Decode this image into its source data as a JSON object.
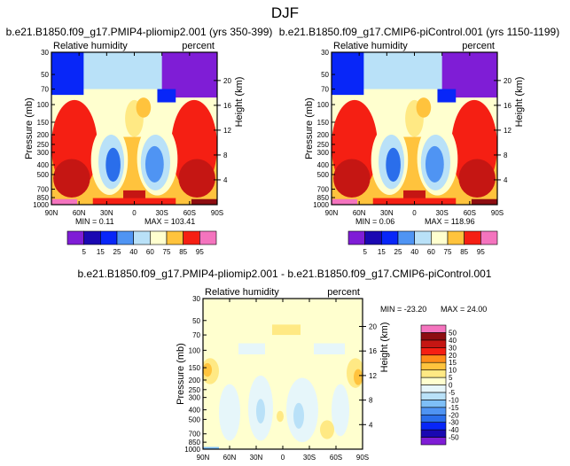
{
  "page_title": "DJF",
  "colors": {
    "c-50": "#7F1DD6",
    "c-40": "#1A08B2",
    "c-30": "#0826F8",
    "c-20": "#2A6EEB",
    "c-15": "#4F94F3",
    "c-10": "#7EBFF7",
    "c-5": "#B9E1F8",
    "c0": "#E6F6FA",
    "c5": "#FFFFCF",
    "c10": "#FFE984",
    "c15": "#FFC33D",
    "c20": "#FF8C19",
    "c30": "#F51F13",
    "c40": "#C51613",
    "c50": "#8D0D11",
    "c60": "#F474BE",
    "frame": "#000000"
  },
  "chart_data": [
    {
      "id": "top_left",
      "type": "heatmap",
      "title": "b.e21.B1850.f09_g17.PMIP4-pliomip2.001 (yrs 350-399)",
      "left_label": "Relative humidity",
      "right_label": "percent",
      "ylabel": "Pressure (mb)",
      "y2label": "Height (km)",
      "x_ticks": [
        "90N",
        "60N",
        "30N",
        "0",
        "30S",
        "60S",
        "90S"
      ],
      "x_values": [
        90,
        60,
        30,
        0,
        -30,
        -60,
        -90
      ],
      "y_ticks": [
        "1000",
        "850",
        "700",
        "500",
        "400",
        "300",
        "250",
        "200",
        "150",
        "100",
        "70",
        "50",
        "30"
      ],
      "y_values": [
        1000,
        850,
        700,
        500,
        400,
        300,
        250,
        200,
        150,
        100,
        70,
        50,
        30
      ],
      "y2_ticks": [
        "4",
        "8",
        "12",
        "16",
        "20"
      ],
      "y2_values": [
        4,
        8,
        12,
        16,
        20
      ],
      "ylim": [
        1000,
        30
      ],
      "xlim": [
        90,
        -90
      ],
      "min_text": "MIN = 0.11",
      "max_text": "MAX = 103.41",
      "levels": [
        5,
        15,
        25,
        40,
        60,
        75,
        85,
        95
      ],
      "level_labels": [
        "5",
        "15",
        "25",
        "40",
        "60",
        "75",
        "85",
        "95"
      ],
      "palette": [
        "#7F1DD6",
        "#1A08B2",
        "#0826F8",
        "#4F94F3",
        "#B9E1F8",
        "#FFFFCF",
        "#FFC33D",
        "#F51F13",
        "#F474BE"
      ]
    },
    {
      "id": "top_right",
      "type": "heatmap",
      "title": "b.e21.B1850.f09_g17.CMIP6-piControl.001 (yrs 1150-1199)",
      "left_label": "Relative humidity",
      "right_label": "percent",
      "ylabel": "Pressure (mb)",
      "y2label": "Height (km)",
      "x_ticks": [
        "90N",
        "60N",
        "30N",
        "0",
        "30S",
        "60S",
        "90S"
      ],
      "x_values": [
        90,
        60,
        30,
        0,
        -30,
        -60,
        -90
      ],
      "y_ticks": [
        "1000",
        "850",
        "700",
        "500",
        "400",
        "300",
        "250",
        "200",
        "150",
        "100",
        "70",
        "50",
        "30"
      ],
      "y_values": [
        1000,
        850,
        700,
        500,
        400,
        300,
        250,
        200,
        150,
        100,
        70,
        50,
        30
      ],
      "y2_ticks": [
        "4",
        "8",
        "12",
        "16",
        "20"
      ],
      "y2_values": [
        4,
        8,
        12,
        16,
        20
      ],
      "ylim": [
        1000,
        30
      ],
      "xlim": [
        90,
        -90
      ],
      "min_text": "MIN = 0.06",
      "max_text": "MAX = 118.96",
      "levels": [
        5,
        15,
        25,
        40,
        60,
        75,
        85,
        95
      ],
      "level_labels": [
        "5",
        "15",
        "25",
        "40",
        "60",
        "75",
        "85",
        "95"
      ],
      "palette": [
        "#7F1DD6",
        "#1A08B2",
        "#0826F8",
        "#4F94F3",
        "#B9E1F8",
        "#FFFFCF",
        "#FFC33D",
        "#F51F13",
        "#F474BE"
      ]
    },
    {
      "id": "bottom",
      "type": "heatmap",
      "title": "b.e21.B1850.f09_g17.PMIP4-pliomip2.001 - b.e21.B1850.f09_g17.CMIP6-piControl.001",
      "left_label": "Relative humidity",
      "right_label": "percent",
      "ylabel": "Pressure (mb)",
      "y2label": "Height (km)",
      "x_ticks": [
        "90N",
        "60N",
        "30N",
        "0",
        "30S",
        "60S",
        "90S"
      ],
      "x_values": [
        90,
        60,
        30,
        0,
        -30,
        -60,
        -90
      ],
      "y_ticks": [
        "1000",
        "850",
        "700",
        "500",
        "400",
        "300",
        "250",
        "200",
        "150",
        "100",
        "70",
        "50",
        "30"
      ],
      "y_values": [
        1000,
        850,
        700,
        500,
        400,
        300,
        250,
        200,
        150,
        100,
        70,
        50,
        30
      ],
      "y2_ticks": [
        "4",
        "8",
        "12",
        "16",
        "20"
      ],
      "y2_values": [
        4,
        8,
        12,
        16,
        20
      ],
      "ylim": [
        1000,
        30
      ],
      "xlim": [
        90,
        -90
      ],
      "min_text": "MIN = -23.20",
      "max_text": "MAX = 24.00",
      "levels": [
        -50,
        -40,
        -30,
        -20,
        -15,
        -10,
        -5,
        0,
        5,
        10,
        15,
        20,
        30,
        40,
        50
      ],
      "level_labels": [
        "-50",
        "-40",
        "-30",
        "-20",
        "-15",
        "-10",
        "-5",
        "0",
        "5",
        "10",
        "15",
        "20",
        "30",
        "40",
        "50"
      ],
      "palette": [
        "#7F1DD6",
        "#1A08B2",
        "#0826F8",
        "#2A6EEB",
        "#4F94F3",
        "#7EBFF7",
        "#B9E1F8",
        "#E6F6FA",
        "#FFFFCF",
        "#FFE984",
        "#FFC33D",
        "#FF8C19",
        "#F51F13",
        "#C51613",
        "#8D0D11",
        "#F474BE"
      ]
    }
  ]
}
